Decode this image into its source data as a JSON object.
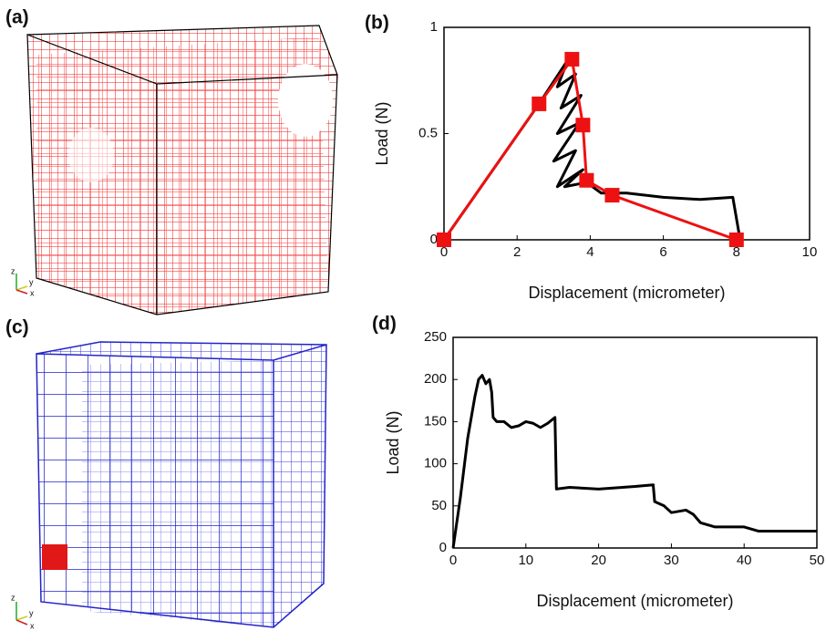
{
  "panels": [
    {
      "label": "(a)",
      "axes": [
        "z",
        "y",
        "x"
      ]
    },
    {
      "label": "(b)"
    },
    {
      "label": "(c)",
      "axes": [
        "z",
        "y",
        "x"
      ]
    },
    {
      "label": "(d)"
    }
  ],
  "chart_data": [
    {
      "type": "line",
      "xlabel": "Displacement (micrometer)",
      "ylabel": "Load (N)",
      "xlim": [
        0,
        10
      ],
      "ylim": [
        0,
        1
      ],
      "xticks": [
        0,
        2,
        4,
        6,
        8,
        10
      ],
      "yticks": [
        0,
        0.5,
        1
      ],
      "series": [
        {
          "color": "#000000",
          "x": [
            0,
            2.6,
            3.4,
            3.1,
            3.6,
            3.2,
            3.75,
            3.1,
            3.7,
            3.0,
            3.6,
            3.1,
            3.8,
            3.3,
            3.9,
            4.3,
            5.0,
            6.0,
            7.0,
            7.9,
            8.1
          ],
          "values": [
            0,
            0.64,
            0.85,
            0.72,
            0.78,
            0.62,
            0.68,
            0.5,
            0.55,
            0.37,
            0.42,
            0.25,
            0.33,
            0.25,
            0.27,
            0.22,
            0.22,
            0.2,
            0.19,
            0.2,
            0
          ]
        },
        {
          "color": "#ee1111",
          "marker": "square",
          "x": [
            0,
            2.6,
            3.5,
            3.8,
            3.9,
            4.6,
            8.0
          ],
          "values": [
            0,
            0.64,
            0.85,
            0.54,
            0.28,
            0.21,
            0
          ]
        }
      ]
    },
    {
      "type": "line",
      "xlabel": "Displacement (micrometer)",
      "ylabel": "Load (N)",
      "xlim": [
        0,
        50
      ],
      "ylim": [
        0,
        250
      ],
      "xticks": [
        0,
        10,
        20,
        30,
        40,
        50
      ],
      "yticks": [
        0,
        50,
        100,
        150,
        200,
        250
      ],
      "series": [
        {
          "color": "#000000",
          "x": [
            0,
            1,
            2,
            3,
            3.5,
            4,
            4.5,
            5,
            5.3,
            5.5,
            6,
            7,
            8,
            9,
            10,
            11,
            12,
            13,
            14,
            14.2,
            16,
            20,
            25,
            27.5,
            27.7,
            29,
            30,
            32,
            33,
            34,
            36,
            40,
            42,
            50
          ],
          "values": [
            0,
            60,
            130,
            180,
            200,
            205,
            195,
            200,
            185,
            155,
            150,
            150,
            143,
            145,
            150,
            148,
            143,
            148,
            155,
            70,
            72,
            70,
            73,
            75,
            55,
            50,
            42,
            45,
            40,
            30,
            25,
            25,
            20,
            20
          ]
        }
      ]
    }
  ]
}
